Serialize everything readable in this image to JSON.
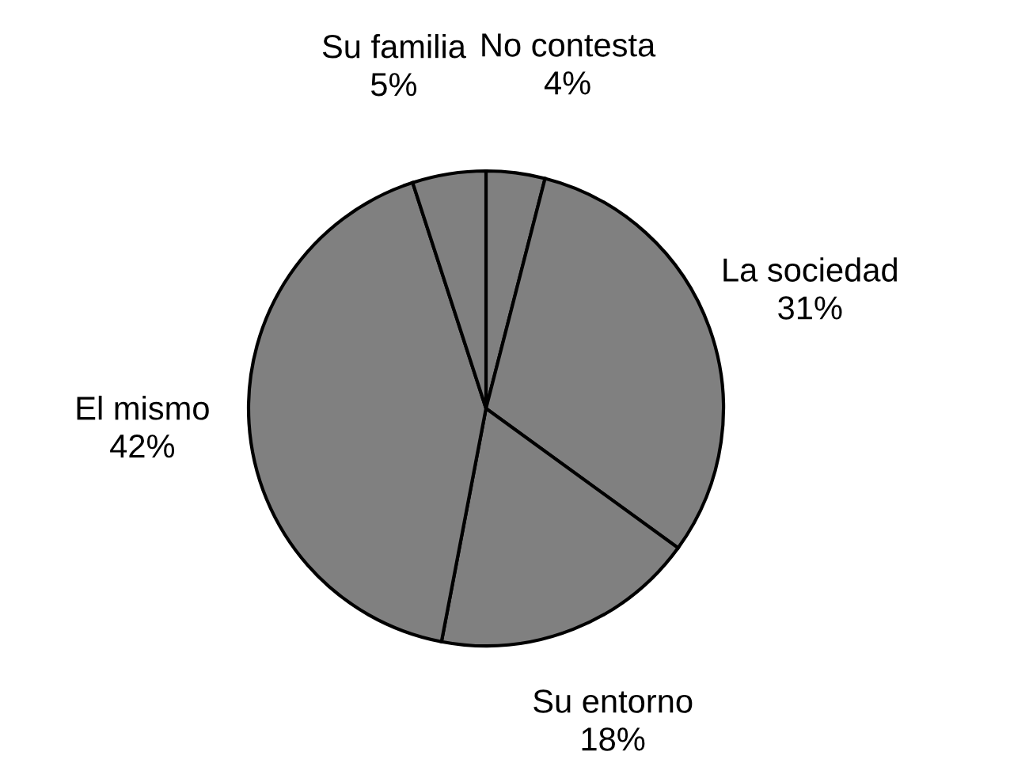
{
  "chart_data": {
    "type": "pie",
    "categories": [
      "No contesta",
      "La sociedad",
      "Su entorno",
      "El mismo",
      "Su familia"
    ],
    "values": [
      4,
      31,
      18,
      42,
      5
    ],
    "value_labels": [
      "4%",
      "31%",
      "18%",
      "42%",
      "5%"
    ],
    "colors": [
      "#808080",
      "#808080",
      "#808080",
      "#808080",
      "#808080"
    ],
    "legend": false
  }
}
